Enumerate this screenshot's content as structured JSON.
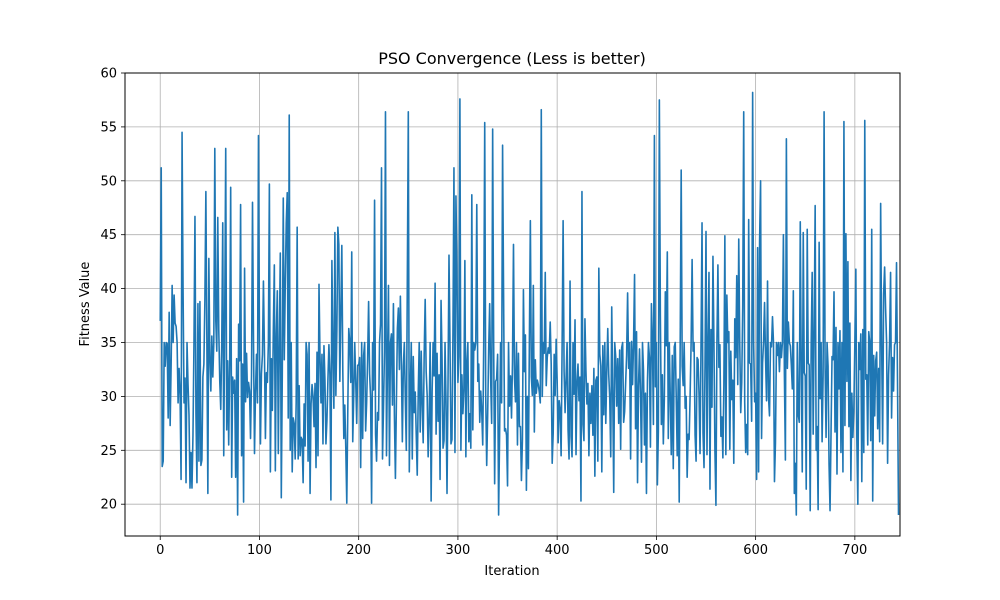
{
  "chart_data": {
    "type": "line",
    "title": "PSO Convergence (Less is better)",
    "xlabel": "Iteration",
    "ylabel": "Fitness Value",
    "xlim": [
      -35.5,
      745.5
    ],
    "ylim": [
      17.05,
      60.0
    ],
    "xticks": [
      0,
      100,
      200,
      300,
      400,
      500,
      600,
      700
    ],
    "yticks": [
      20,
      25,
      30,
      35,
      40,
      45,
      50,
      55,
      60
    ],
    "grid": true,
    "line_color": "#1f77b4",
    "series": [
      {
        "x_start": 0,
        "x_step": 1,
        "values": [
          37.0,
          51.2,
          23.5,
          24.0,
          35.0,
          32.8,
          35.0,
          34.9,
          28.0,
          37.8,
          27.3,
          33.0,
          40.3,
          35.0,
          39.4,
          36.8,
          36.5,
          35.0,
          29.4,
          32.6,
          30.2,
          22.3,
          54.5,
          40.0,
          29.4,
          31.7,
          22.0,
          35.0,
          31.2,
          28.3,
          21.5,
          24.8,
          21.5,
          26.4,
          35.0,
          46.7,
          28.4,
          22.0,
          38.6,
          24.0,
          38.8,
          23.6,
          24.1,
          31.8,
          33.0,
          38.9,
          49.0,
          35.0,
          21.0,
          42.8,
          33.7,
          30.5,
          35.6,
          31.8,
          35.0,
          53.0,
          37.0,
          34.2,
          46.6,
          36.2,
          31.4,
          28.8,
          35.0,
          46.1,
          24.5,
          37.5,
          53.0,
          26.9,
          33.3,
          25.5,
          33.0,
          49.4,
          22.5,
          31.8,
          30.3,
          31.5,
          22.5,
          33.5,
          19.0,
          36.7,
          33.3,
          47.8,
          24.5,
          33.0,
          20.2,
          41.9,
          29.5,
          34.0,
          29.9,
          31.3,
          30.5,
          26.1,
          31.9,
          48.0,
          35.0,
          24.7,
          30.4,
          33.9,
          29.4,
          54.2,
          35.0,
          25.6,
          32.1,
          33.9,
          40.7,
          34.3,
          26.1,
          32.2,
          31.3,
          35.0,
          49.7,
          23.0,
          33.5,
          28.7,
          36.2,
          42.2,
          23.1,
          35.8,
          39.8,
          24.7,
          35.0,
          43.3,
          20.6,
          31.9,
          48.4,
          33.4,
          40.3,
          46.1,
          48.9,
          28.0,
          56.1,
          25.0,
          35.0,
          23.0,
          28.0,
          27.5,
          24.2,
          29.4,
          45.7,
          24.2,
          31.0,
          24.5,
          26.2,
          26.0,
          22.0,
          29.3,
          25.4,
          35.0,
          33.9,
          24.0,
          35.0,
          21.0,
          29.3,
          31.1,
          30.0,
          27.2,
          31.2,
          23.4,
          34.1,
          24.5,
          40.4,
          33.8,
          29.4,
          33.9,
          25.6,
          34.7,
          31.5,
          25.6,
          27.8,
          31.6,
          34.8,
          32.0,
          20.4,
          42.6,
          34.2,
          28.9,
          45.2,
          30.1,
          36.1,
          45.7,
          44.1,
          31.4,
          38.0,
          44.0,
          32.3,
          26.1,
          29.2,
          25.2,
          20.1,
          28.6,
          36.3,
          35.0,
          31.3,
          43.4,
          25.8,
          30.1,
          35.0,
          31.5,
          27.5,
          32.9,
          32.9,
          33.6,
          23.4,
          35.0,
          26.1,
          33.8,
          35.0,
          26.8,
          29.4,
          33.4,
          38.8,
          32.1,
          29.9,
          20.1,
          35.0,
          30.6,
          48.2,
          26.5,
          24.0,
          28.5,
          27.8,
          35.0,
          36.7,
          51.2,
          24.2,
          29.0,
          34.2,
          56.4,
          24.5,
          33.0,
          40.3,
          23.6,
          35.0,
          35.8,
          29.2,
          38.6,
          28.2,
          22.4,
          29.5,
          36.3,
          38.2,
          32.5,
          39.3,
          33.3,
          25.8,
          32.8,
          35.0,
          29.7,
          25.0,
          40.6,
          56.4,
          23.0,
          30.3,
          35.0,
          24.2,
          33.7,
          28.5,
          30.4,
          26.4,
          22.7,
          30.3,
          35.0,
          26.7,
          34.2,
          29.2,
          25.7,
          33.9,
          39.0,
          32.3,
          30.1,
          24.4,
          27.9,
          35.0,
          20.3,
          30.4,
          35.0,
          31.9,
          40.5,
          26.5,
          34.0,
          27.7,
          32.0,
          22.3,
          38.9,
          33.5,
          25.2,
          25.9,
          35.0,
          29.6,
          21.0,
          31.0,
          43.1,
          35.0,
          25.6,
          26.0,
          36.0,
          51.2,
          24.8,
          48.6,
          42.0,
          31.3,
          33.7,
          57.6,
          25.0,
          32.0,
          28.4,
          30.5,
          42.6,
          24.4,
          33.1,
          35.0,
          25.8,
          28.4,
          25.2,
          48.7,
          26.9,
          35.0,
          34.3,
          35.0,
          47.8,
          31.4,
          33.0,
          27.6,
          30.5,
          28.6,
          25.5,
          35.0,
          55.4,
          30.1,
          23.6,
          28.4,
          34.4,
          38.6,
          31.6,
          27.5,
          54.8,
          35.0,
          21.9,
          31.4,
          31.6,
          33.9,
          19.0,
          26.5,
          35.0,
          29.4,
          53.3,
          39.6,
          26.8,
          27.0,
          26.4,
          21.7,
          35.0,
          29.1,
          31.9,
          28.0,
          33.2,
          44.1,
          31.7,
          29.5,
          35.0,
          25.5,
          34.0,
          27.2,
          27.2,
          22.2,
          26.0,
          39.9,
          32.3,
          35.7,
          21.3,
          30.0,
          23.3,
          35.0,
          46.3,
          31.8,
          30.1,
          40.3,
          26.7,
          33.4,
          30.3,
          31.5,
          31.1,
          30.4,
          29.4,
          56.6,
          30.0,
          35.0,
          34.0,
          41.5,
          31.0,
          33.6,
          34.5,
          34.0,
          36.9,
          33.0,
          23.8,
          26.6,
          33.9,
          30.1,
          35.3,
          31.5,
          25.7,
          29.6,
          28.8,
          24.5,
          34.8,
          46.3,
          32.3,
          28.5,
          31.7,
          35.0,
          26.9,
          24.2,
          40.7,
          26.3,
          24.4,
          35.0,
          30.2,
          37.1,
          24.6,
          31.3,
          33.0,
          29.6,
          31.8,
          20.3,
          49.0,
          27.4,
          25.9,
          37.2,
          32.4,
          29.3,
          31.2,
          24.5,
          30.3,
          27.5,
          31.0,
          26.4,
          32.6,
          22.6,
          31.5,
          31.8,
          24.0,
          41.9,
          33.9,
          32.8,
          23.0,
          34.7,
          28.3,
          35.0,
          27.5,
          32.3,
          36.3,
          32.0,
          29.8,
          24.4,
          38.3,
          30.6,
          21.1,
          35.0,
          33.7,
          29.1,
          33.5,
          27.5,
          34.3,
          25.1,
          34.5,
          35.0,
          27.6,
          28.6,
          31.2,
          33.8,
          39.6,
          32.6,
          35.0,
          24.2,
          35.1,
          31.1,
          35.0,
          41.3,
          27.0,
          36.0,
          22.0,
          31.0,
          34.4,
          30.2,
          23.9,
          35.0,
          32.4,
          25.5,
          30.3,
          21.0,
          31.4,
          35.0,
          33.6,
          25.3,
          38.6,
          35.0,
          27.4,
          54.2,
          30.9,
          35.0,
          21.8,
          26.8,
          57.5,
          37.5,
          27.4,
          32.0,
          25.6,
          29.7,
          39.7,
          34.7,
          43.4,
          26.1,
          35.0,
          29.9,
          24.6,
          33.8,
          23.3,
          34.6,
          35.0,
          29.9,
          24.5,
          31.6,
          20.2,
          35.0,
          51.0,
          32.8,
          31.0,
          35.0,
          28.9,
          30.0,
          22.5,
          26.5,
          26.0,
          30.1,
          35.0,
          42.7,
          34.2,
          35.0,
          26.4,
          24.0,
          33.6,
          33.4,
          30.1,
          24.7,
          35.0,
          46.1,
          26.6,
          23.4,
          32.8,
          45.3,
          24.6,
          35.0,
          41.5,
          21.4,
          36.2,
          29.0,
          43.0,
          35.0,
          25.0,
          19.9,
          35.0,
          42.2,
          32.7,
          34.8,
          26.3,
          28.1,
          24.3,
          31.0,
          44.9,
          24.6,
          39.4,
          35.0,
          36.0,
          25.1,
          34.2,
          29.7,
          31.5,
          23.8,
          37.2,
          33.6,
          41.2,
          31.1,
          44.6,
          35.0,
          28.5,
          31.3,
          38.4,
          56.4,
          29.5,
          24.8,
          27.4,
          24.6,
          46.4,
          33.1,
          33.0,
          27.7,
          58.2,
          35.0,
          29.5,
          30.3,
          22.3,
          43.8,
          23.0,
          44.4,
          50.0,
          26.1,
          33.1,
          35.1,
          38.7,
          33.6,
          29.6,
          40.7,
          29.9,
          28.2,
          35.0,
          34.6,
          37.4,
          35.0,
          22.1,
          25.7,
          35.0,
          33.8,
          35.0,
          32.3,
          35.0,
          33.6,
          35.0,
          45.0,
          32.0,
          24.1,
          53.9,
          32.6,
          36.9,
          35.0,
          34.7,
          32.9,
          30.7,
          39.8,
          21.0,
          23.8,
          19.0,
          35.0,
          28.3,
          27.6,
          46.2,
          32.6,
          23.0,
          45.2,
          32.2,
          31.9,
          21.4,
          45.5,
          33.1,
          32.9,
          19.4,
          35.0,
          41.5,
          26.5,
          36.1,
          47.7,
          25.0,
          27.2,
          19.5,
          44.3,
          29.8,
          35.0,
          25.8,
          31.9,
          56.4,
          32.8,
          26.2,
          35.0,
          32.8,
          23.7,
          19.4,
          26.6,
          33.7,
          33.4,
          39.7,
          26.7,
          36.4,
          22.8,
          35.0,
          30.7,
          36.1,
          24.8,
          35.0,
          23.0,
          55.5,
          27.3,
          45.1,
          31.4,
          42.5,
          27.2,
          36.8,
          22.2,
          30.3,
          26.2,
          28.9,
          35.0,
          41.8,
          26.1,
          20.0,
          35.0,
          32.5,
          35.8,
          22.1,
          36.2,
          24.8,
          55.6,
          31.6,
          32.0,
          25.5,
          36.0,
          35.0,
          25.9,
          45.5,
          20.3,
          33.8,
          28.2,
          33.3,
          34.1,
          27.0,
          32.6,
          25.8,
          47.9,
          35.0,
          25.6,
          39.5,
          42.0,
          38.1,
          35.0,
          23.8,
          32.0,
          35.0,
          41.5,
          28.0,
          33.6,
          30.5,
          34.8,
          35.0,
          42.4,
          31.3,
          19.0
        ]
      }
    ]
  }
}
